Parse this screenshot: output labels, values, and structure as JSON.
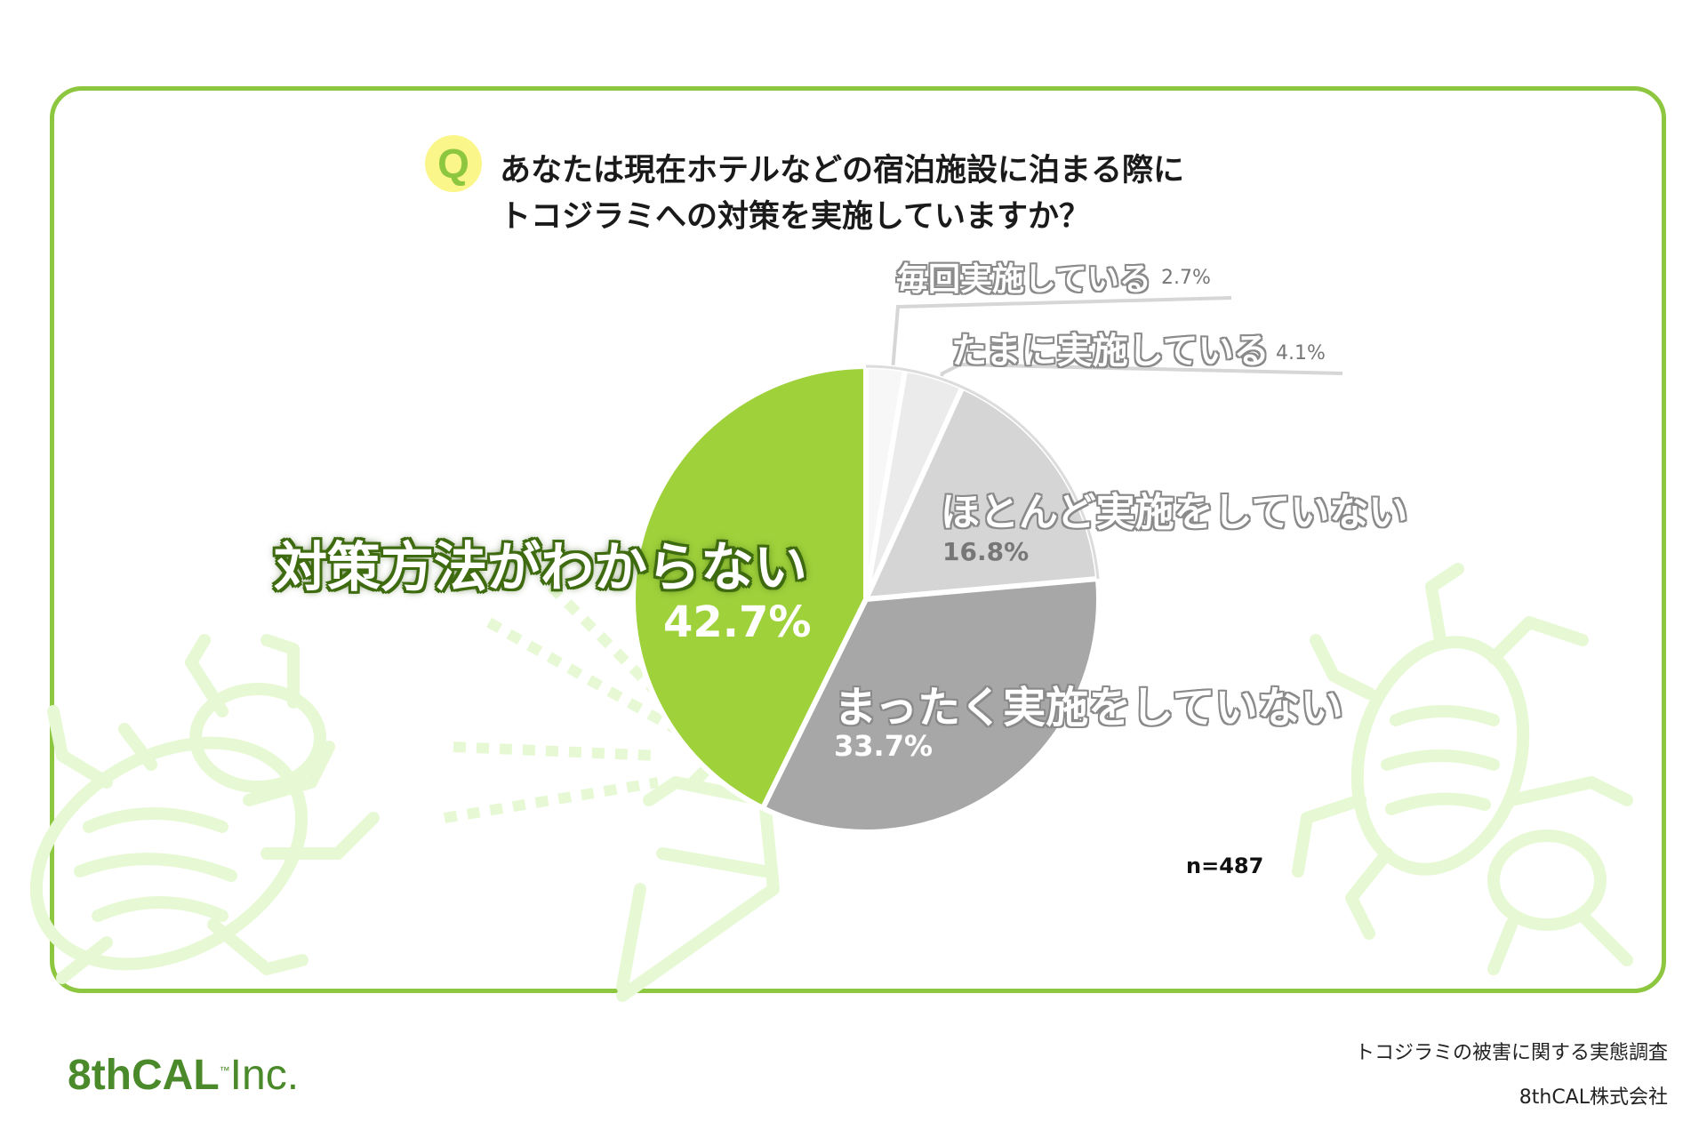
{
  "question": {
    "badge": "Q",
    "line1": "あなたは現在ホテルなどの宿泊施設に泊まる際に",
    "line2": "トコジラミへの対策を実施していますか？"
  },
  "chart_data": {
    "type": "pie",
    "start_angle_deg": 0,
    "direction": "clockwise",
    "slices": [
      {
        "label": "毎回実施している",
        "value": 2.7,
        "pct_text": "2.7%",
        "color": "#f7f7f7"
      },
      {
        "label": "たまに実施している",
        "value": 4.1,
        "pct_text": "4.1%",
        "color": "#ebebeb"
      },
      {
        "label": "ほとんど実施をしていない",
        "value": 16.8,
        "pct_text": "16.8%",
        "color": "#d5d5d5"
      },
      {
        "label": "まったく実施をしていない",
        "value": 33.7,
        "pct_text": "33.7%",
        "color": "#a7a7a7"
      },
      {
        "label": "対策方法がわからない",
        "value": 42.7,
        "pct_text": "42.7%",
        "color": "#9fd13b"
      }
    ],
    "sample_size": "n=487"
  },
  "colors": {
    "frame": "#8dc63f",
    "badge": "#faf68a",
    "deco": "#e6f9d4"
  },
  "logo": {
    "main": "8thCAL",
    "tm": "™",
    "suffix": "Inc."
  },
  "footer": {
    "survey": "トコジラミの被害に関する実態調査",
    "company": "8thCAL株式会社"
  },
  "icons": [
    "bedbug-icon",
    "spray-bottle-icon"
  ]
}
